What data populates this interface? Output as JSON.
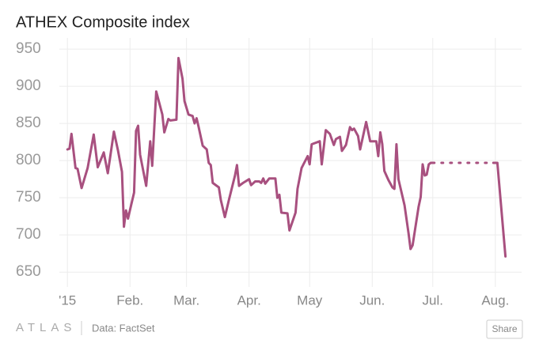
{
  "chart_data": {
    "type": "line",
    "title": "ATHEX Composite index",
    "xlim": [
      -4,
      225
    ],
    "ylim": [
      630,
      965
    ],
    "xticks": [
      {
        "value": 0,
        "label": "'15"
      },
      {
        "value": 31,
        "label": "Feb."
      },
      {
        "value": 59,
        "label": "Mar."
      },
      {
        "value": 90,
        "label": "Apr."
      },
      {
        "value": 120,
        "label": "May"
      },
      {
        "value": 151,
        "label": "Jun."
      },
      {
        "value": 181,
        "label": "Jul."
      },
      {
        "value": 212,
        "label": "Aug."
      }
    ],
    "yticks": [
      650,
      700,
      750,
      800,
      850,
      900,
      950
    ],
    "grid": true,
    "series": [
      {
        "color": "#a8507f",
        "dashed": false,
        "x": [
          0,
          1,
          2,
          4,
          5,
          7,
          10,
          13,
          15,
          18,
          20,
          23,
          25,
          27,
          28,
          29,
          30,
          33,
          34,
          35,
          36,
          39,
          41,
          42,
          44,
          47,
          48,
          50,
          51,
          54,
          55,
          57,
          58,
          60,
          62,
          63,
          64,
          65,
          67,
          69,
          70,
          71,
          72,
          74,
          75,
          76,
          78,
          80,
          83,
          84,
          85,
          87,
          90,
          91,
          93,
          95,
          96,
          97,
          98,
          100,
          103,
          104,
          105,
          106,
          109,
          110,
          113,
          114,
          116,
          119,
          120,
          121,
          125,
          126,
          128,
          130,
          132,
          133,
          135,
          136,
          138,
          140,
          141,
          142,
          144,
          145,
          148,
          150,
          152,
          153,
          154,
          155,
          156,
          157,
          159,
          161,
          162,
          163,
          164,
          167,
          169,
          170,
          171,
          174,
          175,
          176,
          177,
          178,
          179,
          180,
          181,
          196,
          211,
          213,
          217
        ],
        "values": [
          815,
          816,
          836,
          790,
          789,
          763,
          790,
          835,
          791,
          811,
          783,
          839,
          814,
          785,
          711,
          733,
          722,
          757,
          840,
          847,
          808,
          766,
          826,
          793,
          893,
          862,
          838,
          856,
          854,
          855,
          938,
          910,
          880,
          862,
          860,
          850,
          857,
          845,
          820,
          815,
          797,
          794,
          770,
          766,
          764,
          747,
          724,
          747,
          780,
          794,
          766,
          770,
          775,
          767,
          772,
          772,
          770,
          776,
          769,
          776,
          776,
          750,
          754,
          730,
          729,
          706,
          730,
          762,
          790,
          806,
          795,
          822,
          826,
          795,
          841,
          836,
          821,
          829,
          832,
          813,
          821,
          845,
          841,
          843,
          833,
          815,
          852,
          826,
          826,
          826,
          806,
          838,
          822,
          786,
          774,
          764,
          762,
          822,
          775,
          740,
          702,
          681,
          686,
          738,
          751,
          795,
          780,
          781,
          795,
          797,
          797,
          null,
          797,
          797,
          671
        ]
      },
      {
        "color": "#a8507f",
        "dashed": true,
        "x": [
          181,
          211
        ],
        "values": [
          797,
          797
        ]
      }
    ]
  },
  "footer": {
    "brand": "ATLAS",
    "source": "Data: FactSet",
    "button": "Share"
  }
}
